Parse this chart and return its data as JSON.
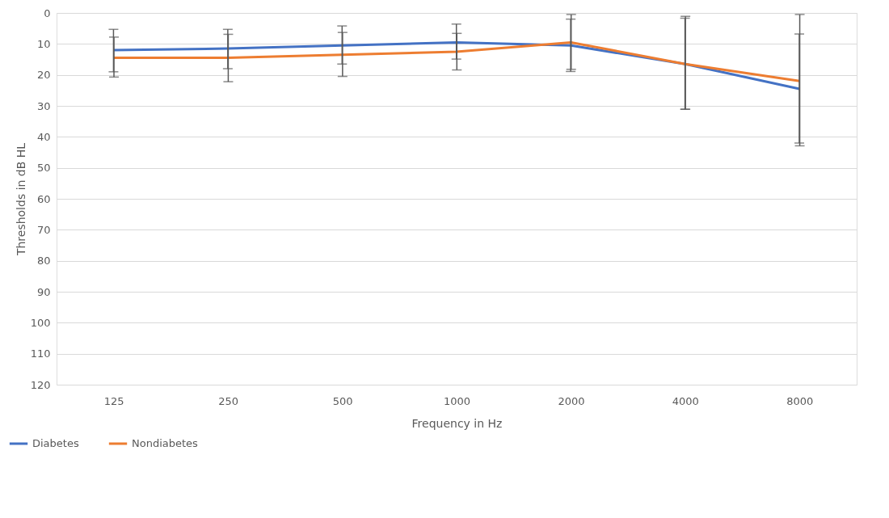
{
  "chart_data": {
    "type": "line",
    "xlabel": "Frequency in Hz",
    "ylabel": "Thresholds in dB HL",
    "categories": [
      "125",
      "250",
      "500",
      "1000",
      "2000",
      "4000",
      "8000"
    ],
    "series": [
      {
        "name": "Diabetes",
        "color": "#4472c4",
        "values": [
          12,
          11.5,
          10.5,
          9.5,
          10.5,
          16.5,
          24.5
        ],
        "errors": [
          [
            5.3,
            19
          ],
          [
            5.3,
            18
          ],
          [
            4.2,
            16.5
          ],
          [
            3.6,
            14.9
          ],
          [
            2,
            18.9
          ],
          [
            1.7,
            31.1
          ],
          [
            6.8,
            42
          ]
        ]
      },
      {
        "name": "Nondiabetes",
        "color": "#ed7d31",
        "values": [
          14.5,
          14.5,
          13.5,
          12.5,
          9.5,
          16.5,
          22
        ],
        "errors": [
          [
            7.8,
            20.7
          ],
          [
            6.9,
            22.2
          ],
          [
            6.3,
            20.5
          ],
          [
            6.6,
            18.4
          ],
          [
            0.5,
            18.2
          ],
          [
            1.1,
            31.1
          ],
          [
            0.5,
            42.9
          ]
        ]
      }
    ],
    "ylim": [
      120,
      0
    ],
    "yticks": [
      0,
      10,
      20,
      30,
      40,
      50,
      60,
      70,
      80,
      90,
      100,
      110,
      120
    ],
    "grid": "y",
    "legend": "bottom left",
    "marker": "none",
    "line_style": "solid"
  }
}
